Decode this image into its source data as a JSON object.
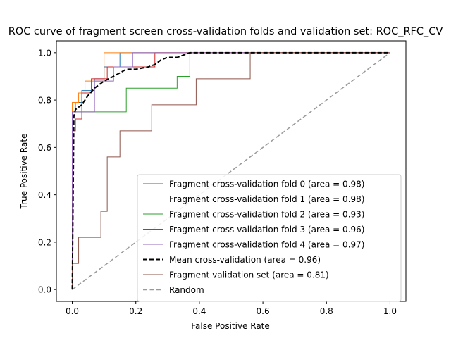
{
  "chart_data": {
    "type": "line",
    "title": "ROC curve of fragment screen cross-validation folds and validation set: ROC_RFC_CV",
    "xlabel": "False Positive Rate",
    "ylabel": "True Positive Rate",
    "xlim": [
      -0.05,
      1.05
    ],
    "ylim": [
      -0.05,
      1.05
    ],
    "xticks": [
      0.0,
      0.2,
      0.4,
      0.6,
      0.8,
      1.0
    ],
    "xtick_labels": [
      "0.0",
      "0.2",
      "0.4",
      "0.6",
      "0.8",
      "1.0"
    ],
    "yticks": [
      0.0,
      0.2,
      0.4,
      0.6,
      0.8,
      1.0
    ],
    "ytick_labels": [
      "0.0",
      "0.2",
      "0.4",
      "0.6",
      "0.8",
      "1.0"
    ],
    "legend_position": "lower-right",
    "series": [
      {
        "name": "Fragment cross-validation fold 0 (area = 0.98)",
        "color": "#1f77b4",
        "style": "solid",
        "width": 1,
        "x": [
          0,
          0,
          0.01,
          0.01,
          0.03,
          0.03,
          0.07,
          0.07,
          0.1,
          0.1,
          0.15,
          0.15,
          1.0
        ],
        "y": [
          0,
          0.75,
          0.75,
          0.79,
          0.79,
          0.84,
          0.84,
          0.89,
          0.89,
          0.94,
          0.94,
          1.0,
          1.0
        ]
      },
      {
        "name": "Fragment cross-validation fold 1 (area = 0.98)",
        "color": "#ff7f0e",
        "style": "solid",
        "width": 1,
        "x": [
          0,
          0,
          0.02,
          0.02,
          0.04,
          0.04,
          0.07,
          0.07,
          0.1,
          0.1,
          1.0
        ],
        "y": [
          0,
          0.79,
          0.79,
          0.83,
          0.83,
          0.88,
          0.88,
          0.88,
          0.88,
          1.0,
          1.0
        ]
      },
      {
        "name": "Fragment cross-validation fold 2 (area = 0.93)",
        "color": "#2ca02c",
        "style": "solid",
        "width": 1,
        "x": [
          0,
          0,
          0.11,
          0.11,
          0.17,
          0.17,
          0.31,
          0.31,
          0.33,
          0.33,
          0.37,
          0.37,
          1.0
        ],
        "y": [
          0,
          0.75,
          0.75,
          0.75,
          0.75,
          0.85,
          0.85,
          0.85,
          0.85,
          0.9,
          0.9,
          1.0,
          1.0
        ]
      },
      {
        "name": "Fragment cross-validation fold 3 (area = 0.96)",
        "color": "#d62728",
        "style": "solid",
        "width": 1,
        "x": [
          0,
          0,
          0.01,
          0.01,
          0.03,
          0.03,
          0.04,
          0.04,
          0.06,
          0.06,
          0.11,
          0.11,
          0.26,
          0.26,
          1.0
        ],
        "y": [
          0,
          0.67,
          0.67,
          0.72,
          0.72,
          0.83,
          0.83,
          0.83,
          0.83,
          0.89,
          0.89,
          0.94,
          0.94,
          1.0,
          1.0
        ]
      },
      {
        "name": "Fragment cross-validation fold 4 (area = 0.97)",
        "color": "#9467bd",
        "style": "solid",
        "width": 1,
        "x": [
          0,
          0,
          0.07,
          0.07,
          0.13,
          0.13,
          0.19,
          0.19,
          1.0
        ],
        "y": [
          0,
          0.75,
          0.75,
          0.88,
          0.88,
          0.94,
          0.94,
          1.0,
          1.0
        ]
      },
      {
        "name": "Mean cross-validation (area = 0.96)",
        "color": "#000000",
        "style": "dashed-thick",
        "width": 2,
        "x": [
          0,
          0.005,
          0.01,
          0.03,
          0.05,
          0.07,
          0.1,
          0.13,
          0.17,
          0.2,
          0.24,
          0.26,
          0.28,
          0.3,
          0.33,
          0.35,
          0.37,
          0.4,
          0.6,
          1.0
        ],
        "y": [
          0,
          0.73,
          0.76,
          0.78,
          0.82,
          0.85,
          0.88,
          0.9,
          0.93,
          0.93,
          0.94,
          0.95,
          0.97,
          0.98,
          0.98,
          0.99,
          1.0,
          1.0,
          1.0,
          1.0
        ]
      },
      {
        "name": "Fragment validation set (area = 0.81)",
        "color": "#8c564b",
        "style": "solid",
        "width": 1,
        "x": [
          0,
          0,
          0.01,
          0.01,
          0.02,
          0.02,
          0.03,
          0.03,
          0.09,
          0.09,
          0.11,
          0.11,
          0.13,
          0.13,
          0.15,
          0.15,
          0.25,
          0.25,
          0.33,
          0.33,
          0.39,
          0.39,
          0.56,
          0.56,
          1.0
        ],
        "y": [
          0,
          0.11,
          0.11,
          0.11,
          0.11,
          0.22,
          0.22,
          0.22,
          0.22,
          0.33,
          0.33,
          0.56,
          0.56,
          0.56,
          0.56,
          0.67,
          0.67,
          0.78,
          0.78,
          0.78,
          0.78,
          0.89,
          0.89,
          1.0,
          1.0
        ]
      },
      {
        "name": "Random",
        "color": "#999999",
        "style": "dashed",
        "width": 1.5,
        "x": [
          0,
          1
        ],
        "y": [
          0,
          1
        ]
      }
    ]
  }
}
